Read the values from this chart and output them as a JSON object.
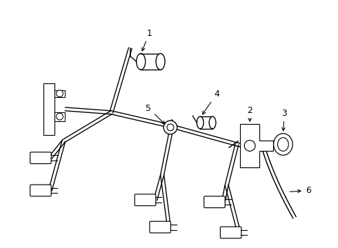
{
  "bg_color": "#ffffff",
  "lc": "#000000",
  "lw": 1.0,
  "fig_w": 4.9,
  "fig_h": 3.6,
  "dpi": 100
}
